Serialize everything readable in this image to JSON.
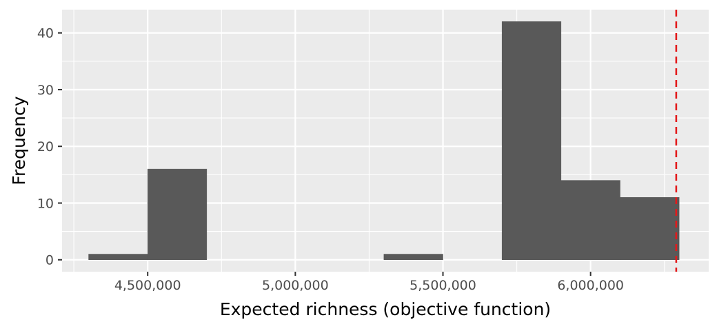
{
  "chart_data": {
    "type": "bar",
    "subtype": "histogram",
    "title": "",
    "xlabel": "Expected richness (objective function)",
    "ylabel": "Frequency",
    "bins": [
      {
        "x0": 4300000,
        "x1": 4500000,
        "count": 1
      },
      {
        "x0": 4500000,
        "x1": 4700000,
        "count": 16
      },
      {
        "x0": 5300000,
        "x1": 5500000,
        "count": 1
      },
      {
        "x0": 5700000,
        "x1": 5900000,
        "count": 42
      },
      {
        "x0": 5900000,
        "x1": 6100000,
        "count": 14
      },
      {
        "x0": 6100000,
        "x1": 6300000,
        "count": 11
      }
    ],
    "reference_line": {
      "x": 6290000,
      "color": "#e31a1c",
      "style": "dashed"
    },
    "xlim": [
      4210000,
      6400000
    ],
    "ylim": [
      -2.1,
      44.1
    ],
    "x_ticks": [
      4500000,
      5000000,
      5500000,
      6000000
    ],
    "x_tick_labels": [
      "4,500,000",
      "5,000,000",
      "5,500,000",
      "6,000,000"
    ],
    "y_ticks": [
      0,
      10,
      20,
      30,
      40
    ],
    "y_tick_labels": [
      "0",
      "10",
      "20",
      "30",
      "40"
    ],
    "grid": true,
    "legend": "none",
    "colors": {
      "panel": "#ebebeb",
      "grid_major": "#ffffff",
      "bar_fill": "#595959",
      "tick_text": "#4d4d4d",
      "axis_title": "#000000"
    }
  }
}
